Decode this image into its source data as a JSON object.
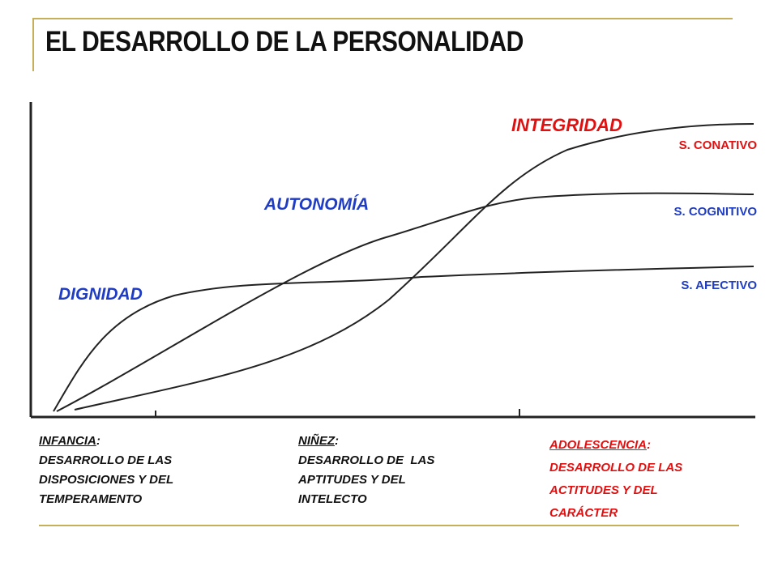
{
  "title": "EL DESARROLLO DE LA PERSONALIDAD",
  "colors": {
    "blue": "#1f3cc4",
    "red": "#e01010",
    "rule": "#c6ae5a",
    "text": "#111111"
  },
  "diagram": {
    "phase_labels": {
      "dignidad": "DIGNIDAD",
      "autonomia": "AUTONOMÍA",
      "integridad": "INTEGRIDAD"
    },
    "curve_labels": {
      "conativo": "S. CONATIVO",
      "cognitivo": "S. COGNITIVO",
      "afectivo": "S. AFECTIVO"
    }
  },
  "stages": {
    "infancia": {
      "head": "INFANCIA",
      "lines": [
        "DESARROLLO DE LAS",
        "DISPOSICIONES Y DEL",
        "TEMPERAMENTO"
      ]
    },
    "ninez": {
      "head": "NIÑEZ",
      "lines": [
        "DESARROLLO DE  LAS",
        "APTITUDES Y DEL",
        "INTELECTO"
      ]
    },
    "adolescencia": {
      "head": "ADOLESCENCIA",
      "lines": [
        "DESARROLLO DE LAS",
        "ACTITUDES Y DEL",
        "CARÁCTER"
      ]
    }
  }
}
